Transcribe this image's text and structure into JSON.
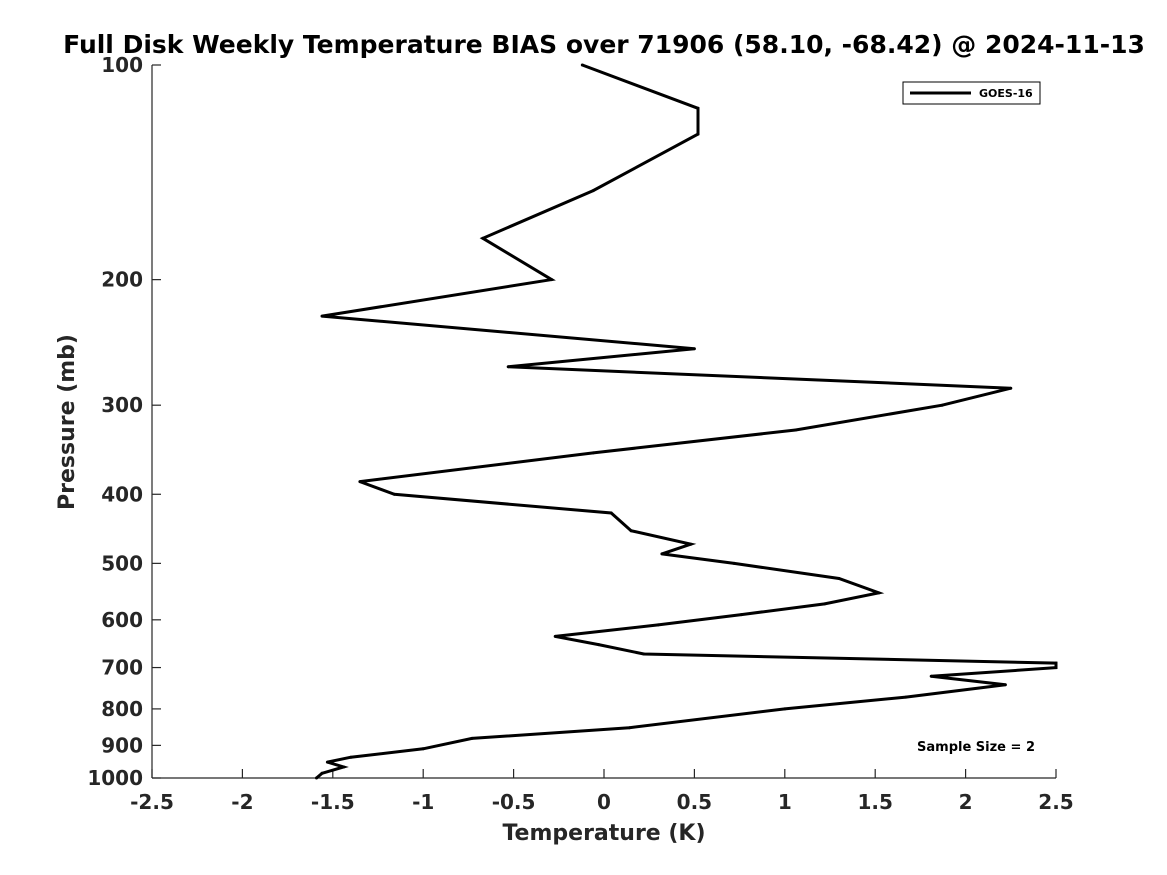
{
  "chart_data": {
    "type": "line",
    "title": "Full Disk Weekly Temperature BIAS over 71906 (58.10, -68.42) @ 2024-11-13",
    "xlabel": "Temperature (K)",
    "ylabel": "Pressure (mb)",
    "xlim": [
      -2.5,
      2.5
    ],
    "ylim": [
      100,
      1000
    ],
    "yscale": "log",
    "y_reversed": true,
    "grid": false,
    "legend_position": "top-right",
    "x_ticks": [
      -2.5,
      -2,
      -1.5,
      -1,
      -0.5,
      0,
      0.5,
      1,
      1.5,
      2,
      2.5
    ],
    "x_tick_labels": [
      "-2.5",
      "-2",
      "-1.5",
      "-1",
      "-0.5",
      "0",
      "0.5",
      "1",
      "1.5",
      "2",
      "2.5"
    ],
    "y_ticks": [
      100,
      200,
      300,
      400,
      500,
      600,
      700,
      800,
      900,
      1000
    ],
    "y_tick_labels": [
      "100",
      "200",
      "300",
      "400",
      "500",
      "600",
      "700",
      "800",
      "900",
      "1000"
    ],
    "annotation": "Sample Size = 2",
    "series": [
      {
        "name": "GOES-16",
        "color": "#000000",
        "x": [
          -0.12,
          0.52,
          0.52,
          -0.06,
          -0.67,
          -0.29,
          -1.56,
          0.5,
          -0.53,
          2.25,
          1.87,
          1.06,
          -0.06,
          -1.35,
          -1.16,
          0.04,
          0.15,
          0.48,
          0.32,
          0.72,
          1.3,
          1.52,
          1.22,
          0.76,
          0.3,
          -0.27,
          -0.03,
          0.22,
          2.5,
          2.5,
          1.81,
          2.22,
          1.67,
          1.0,
          0.14,
          -0.73,
          -1.0,
          -1.4,
          -1.53,
          -1.44,
          -1.56,
          -1.59
        ],
        "y": [
          100,
          115,
          125,
          150,
          175,
          200,
          225,
          250,
          265,
          284,
          300,
          325,
          350,
          384,
          400,
          425,
          450,
          470,
          485,
          500,
          525,
          550,
          570,
          590,
          610,
          633,
          650,
          670,
          690,
          700,
          720,
          740,
          770,
          800,
          850,
          880,
          910,
          935,
          950,
          965,
          985,
          1000
        ]
      }
    ]
  }
}
